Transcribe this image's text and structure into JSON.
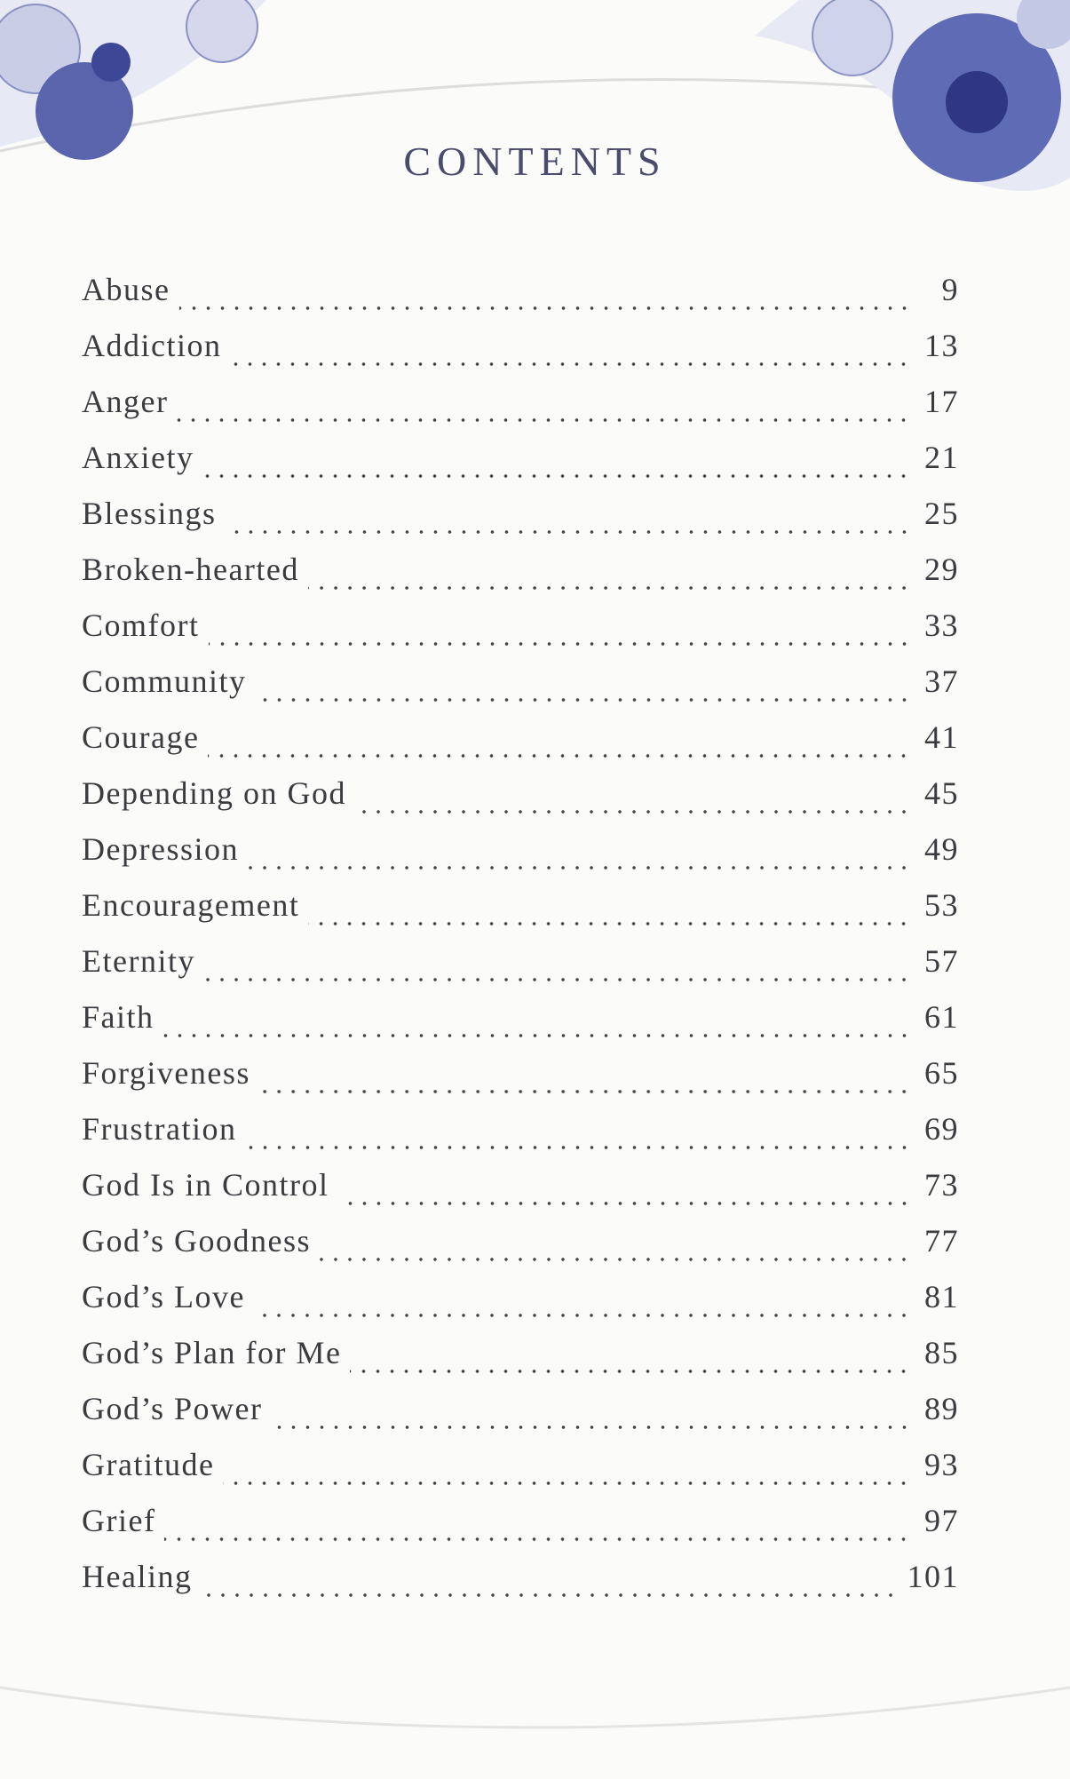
{
  "title": "CONTENTS",
  "entries": [
    {
      "label": "Abuse",
      "page": 9
    },
    {
      "label": "Addiction",
      "page": 13
    },
    {
      "label": "Anger",
      "page": 17
    },
    {
      "label": "Anxiety",
      "page": 21
    },
    {
      "label": "Blessings",
      "page": 25
    },
    {
      "label": "Broken-hearted",
      "page": 29
    },
    {
      "label": "Comfort",
      "page": 33
    },
    {
      "label": "Community",
      "page": 37
    },
    {
      "label": "Courage",
      "page": 41
    },
    {
      "label": "Depending on God",
      "page": 45
    },
    {
      "label": "Depression",
      "page": 49
    },
    {
      "label": "Encouragement",
      "page": 53
    },
    {
      "label": "Eternity",
      "page": 57
    },
    {
      "label": "Faith",
      "page": 61
    },
    {
      "label": "Forgiveness",
      "page": 65
    },
    {
      "label": "Frustration",
      "page": 69
    },
    {
      "label": "God Is in Control",
      "page": 73
    },
    {
      "label": "God’s Goodness",
      "page": 77
    },
    {
      "label": "God’s Love",
      "page": 81
    },
    {
      "label": "God’s Plan for Me",
      "page": 85
    },
    {
      "label": "God’s Power",
      "page": 89
    },
    {
      "label": "Gratitude",
      "page": 93
    },
    {
      "label": "Grief",
      "page": 97
    },
    {
      "label": "Healing",
      "page": 101
    }
  ]
}
